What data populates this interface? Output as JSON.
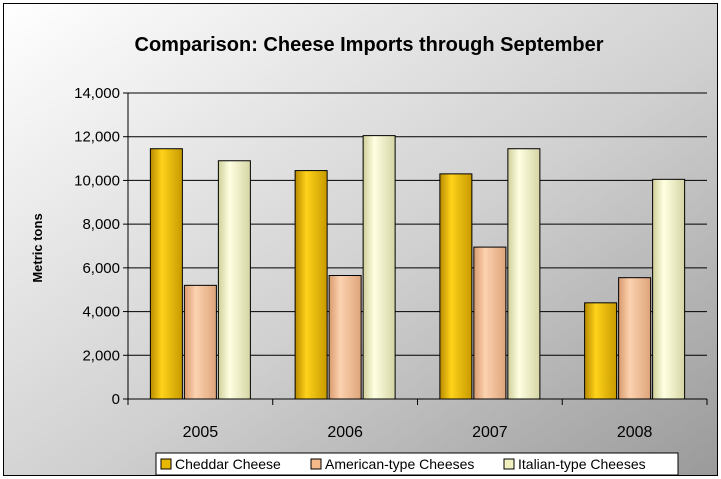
{
  "chart_data": {
    "type": "bar",
    "title": "Comparison: Cheese Imports through September",
    "xlabel": "",
    "ylabel": "Metric tons",
    "ylim": [
      0,
      14000
    ],
    "yticks": [
      0,
      2000,
      4000,
      6000,
      8000,
      10000,
      12000,
      14000
    ],
    "ytick_labels": [
      "0",
      "2,000",
      "4,000",
      "6,000",
      "8,000",
      "10,000",
      "12,000",
      "14,000"
    ],
    "categories": [
      "2005",
      "2006",
      "2007",
      "2008"
    ],
    "series": [
      {
        "name": "Cheddar Cheese",
        "values": [
          11450,
          10450,
          10300,
          4400
        ],
        "color": "#E8B800"
      },
      {
        "name": "American-type Cheeses",
        "values": [
          5200,
          5650,
          6950,
          5550
        ],
        "color": "#F5B98A"
      },
      {
        "name": "Italian-type Cheeses",
        "values": [
          10900,
          12050,
          11450,
          10050
        ],
        "color": "#F0F0C0"
      }
    ],
    "grid": true,
    "legend_position": "bottom"
  }
}
